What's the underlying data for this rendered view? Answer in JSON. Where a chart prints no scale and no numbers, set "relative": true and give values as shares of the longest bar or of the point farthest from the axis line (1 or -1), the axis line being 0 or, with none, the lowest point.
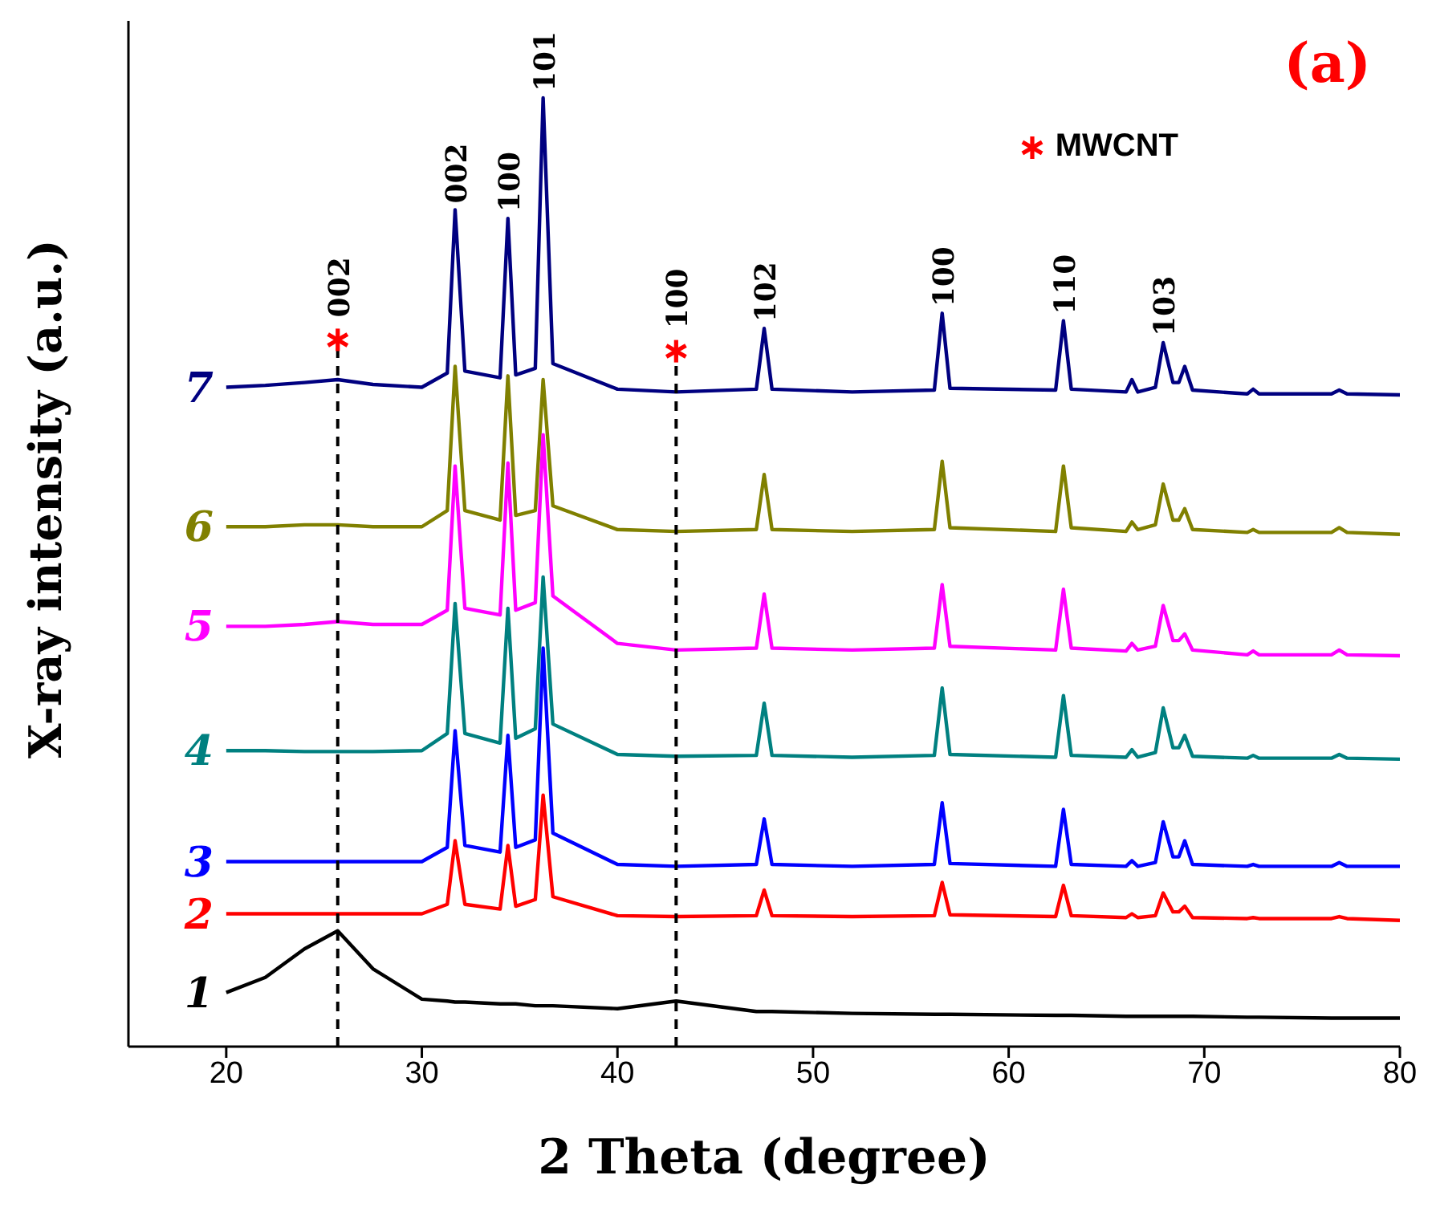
{
  "chart_data": {
    "type": "line",
    "xlabel": "2 Theta (degree)",
    "ylabel": "X-ray intensity (a.u.)",
    "relative": true,
    "xlim": [
      15,
      80
    ],
    "xticks": [
      20,
      30,
      40,
      50,
      60,
      70,
      80
    ],
    "grid": false,
    "legend": "top right",
    "marker": "none",
    "line_style": "solid",
    "x": [
      20,
      22,
      24,
      25.7,
      27.5,
      30,
      31.3,
      31.7,
      32.2,
      34.0,
      34.4,
      34.8,
      35.8,
      36.2,
      36.7,
      40,
      43,
      47.1,
      47.5,
      47.9,
      52,
      56.2,
      56.6,
      57.0,
      62.4,
      62.8,
      63.2,
      66.0,
      66.3,
      66.6,
      67.5,
      67.9,
      68.4,
      68.7,
      69.0,
      69.4,
      72.2,
      72.5,
      72.8,
      76.5,
      76.9,
      77.3,
      80
    ],
    "series": [
      {
        "name": "7",
        "color": "#000080",
        "values": [
          0.695,
          0.697,
          0.7,
          0.703,
          0.698,
          0.695,
          0.71,
          0.882,
          0.712,
          0.705,
          0.873,
          0.708,
          0.715,
          1.0,
          0.72,
          0.693,
          0.69,
          0.693,
          0.757,
          0.693,
          0.69,
          0.692,
          0.773,
          0.694,
          0.692,
          0.765,
          0.693,
          0.69,
          0.703,
          0.69,
          0.695,
          0.742,
          0.7,
          0.7,
          0.717,
          0.692,
          0.688,
          0.693,
          0.688,
          0.688,
          0.692,
          0.688,
          0.687
        ]
      },
      {
        "name": "6",
        "color": "#808000",
        "values": [
          0.548,
          0.548,
          0.55,
          0.55,
          0.548,
          0.548,
          0.565,
          0.717,
          0.565,
          0.555,
          0.707,
          0.56,
          0.565,
          0.703,
          0.57,
          0.545,
          0.543,
          0.545,
          0.603,
          0.545,
          0.543,
          0.545,
          0.617,
          0.547,
          0.543,
          0.612,
          0.547,
          0.543,
          0.553,
          0.545,
          0.55,
          0.593,
          0.555,
          0.555,
          0.567,
          0.545,
          0.542,
          0.545,
          0.542,
          0.542,
          0.547,
          0.542,
          0.54
        ]
      },
      {
        "name": "5",
        "color": "#ff00ff",
        "values": [
          0.443,
          0.443,
          0.445,
          0.448,
          0.445,
          0.445,
          0.46,
          0.612,
          0.462,
          0.455,
          0.615,
          0.46,
          0.468,
          0.645,
          0.475,
          0.425,
          0.418,
          0.42,
          0.477,
          0.42,
          0.418,
          0.42,
          0.487,
          0.422,
          0.418,
          0.482,
          0.42,
          0.417,
          0.425,
          0.418,
          0.422,
          0.465,
          0.428,
          0.428,
          0.435,
          0.418,
          0.413,
          0.417,
          0.413,
          0.413,
          0.418,
          0.413,
          0.412
        ]
      },
      {
        "name": "4",
        "color": "#008080",
        "values": [
          0.312,
          0.312,
          0.311,
          0.311,
          0.311,
          0.312,
          0.33,
          0.467,
          0.33,
          0.32,
          0.462,
          0.325,
          0.335,
          0.495,
          0.34,
          0.308,
          0.306,
          0.307,
          0.362,
          0.307,
          0.305,
          0.307,
          0.378,
          0.308,
          0.305,
          0.37,
          0.307,
          0.305,
          0.313,
          0.305,
          0.31,
          0.357,
          0.315,
          0.315,
          0.328,
          0.306,
          0.304,
          0.307,
          0.304,
          0.304,
          0.308,
          0.304,
          0.303
        ]
      },
      {
        "name": "3",
        "color": "#0000ff",
        "values": [
          0.195,
          0.195,
          0.195,
          0.195,
          0.195,
          0.195,
          0.21,
          0.333,
          0.212,
          0.205,
          0.328,
          0.21,
          0.218,
          0.42,
          0.225,
          0.192,
          0.19,
          0.192,
          0.24,
          0.192,
          0.19,
          0.192,
          0.257,
          0.193,
          0.19,
          0.25,
          0.192,
          0.19,
          0.196,
          0.19,
          0.194,
          0.237,
          0.2,
          0.2,
          0.217,
          0.192,
          0.19,
          0.192,
          0.19,
          0.19,
          0.194,
          0.19,
          0.19
        ]
      },
      {
        "name": "2",
        "color": "#ff0000",
        "values": [
          0.14,
          0.14,
          0.14,
          0.14,
          0.14,
          0.14,
          0.15,
          0.217,
          0.15,
          0.145,
          0.212,
          0.148,
          0.155,
          0.265,
          0.158,
          0.138,
          0.137,
          0.138,
          0.165,
          0.138,
          0.137,
          0.138,
          0.173,
          0.139,
          0.137,
          0.17,
          0.138,
          0.136,
          0.14,
          0.136,
          0.138,
          0.162,
          0.142,
          0.142,
          0.148,
          0.136,
          0.135,
          0.136,
          0.135,
          0.135,
          0.137,
          0.135,
          0.133
        ]
      },
      {
        "name": "1",
        "color": "#000000",
        "values": [
          0.057,
          0.073,
          0.103,
          0.122,
          0.082,
          0.05,
          0.048,
          0.047,
          0.047,
          0.045,
          0.045,
          0.045,
          0.043,
          0.043,
          0.043,
          0.04,
          0.048,
          0.037,
          0.037,
          0.037,
          0.035,
          0.034,
          0.034,
          0.034,
          0.033,
          0.033,
          0.033,
          0.032,
          0.032,
          0.032,
          0.032,
          0.032,
          0.032,
          0.032,
          0.032,
          0.032,
          0.031,
          0.031,
          0.031,
          0.03,
          0.03,
          0.03,
          0.03
        ]
      },
      {
        "type": "scatter",
        "name": "MWCNT",
        "marker": "cross",
        "color": "#ff0000",
        "x": [
          25.7,
          43
        ],
        "values": [
          0.745,
          0.733
        ]
      }
    ],
    "ref_lines": [
      {
        "axis": "x",
        "value": 25.7,
        "line_style": "dashed",
        "color": "#000000"
      },
      {
        "axis": "x",
        "value": 43,
        "line_style": "dashed",
        "color": "#000000"
      }
    ],
    "annotations": [
      {
        "text": "002",
        "x": 25.7,
        "y": 0.745
      },
      {
        "text": "002",
        "x": 31.7,
        "y": 0.882
      },
      {
        "text": "100",
        "x": 34.4,
        "y": 0.873
      },
      {
        "text": "101",
        "x": 36.2,
        "y": 1.0
      },
      {
        "text": "100",
        "x": 43,
        "y": 0.733
      },
      {
        "text": "102",
        "x": 47.5,
        "y": 0.757
      },
      {
        "text": "100",
        "x": 56.6,
        "y": 0.773
      },
      {
        "text": "110",
        "x": 62.8,
        "y": 0.765
      },
      {
        "text": "103",
        "x": 67.9,
        "y": 0.742
      },
      "(a)"
    ]
  }
}
